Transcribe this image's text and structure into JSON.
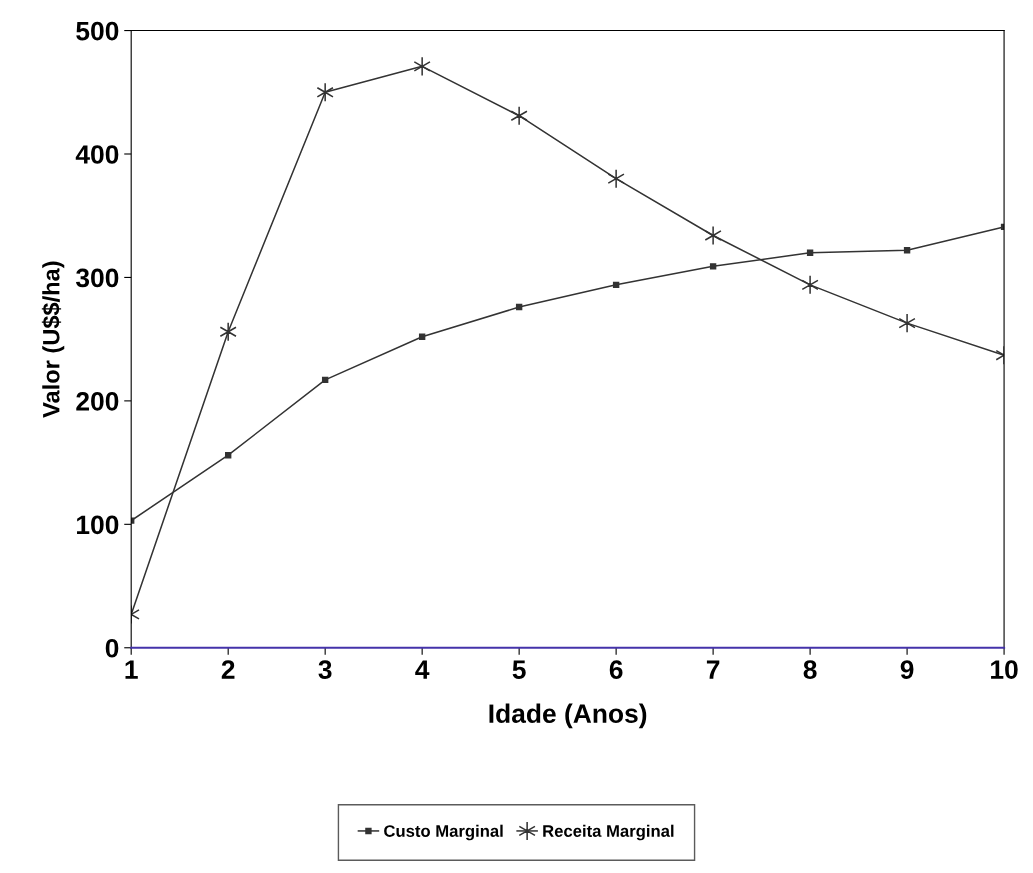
{
  "chart_data": {
    "type": "line",
    "xlabel": "Idade (Anos)",
    "ylabel": "Valor (U$$/ha)",
    "x": [
      1,
      2,
      3,
      4,
      5,
      6,
      7,
      8,
      9,
      10
    ],
    "series": [
      {
        "name": "Custo Marginal",
        "color": "#333333",
        "marker": "square",
        "values": [
          103,
          156,
          217,
          252,
          276,
          294,
          309,
          320,
          322,
          341
        ]
      },
      {
        "name": "Receita Marginal",
        "color": "#333333",
        "marker": "cross",
        "values": [
          27,
          256,
          450,
          471,
          431,
          380,
          334,
          294,
          263,
          237
        ]
      }
    ],
    "xlim": [
      1,
      10
    ],
    "xticks": [
      1,
      2,
      3,
      4,
      5,
      6,
      7,
      8,
      9,
      10
    ],
    "ylim": [
      0,
      500
    ],
    "yticks": [
      0,
      100,
      200,
      300,
      400,
      500
    ],
    "grid": false,
    "legend": "bottom",
    "line_style": "solid"
  }
}
